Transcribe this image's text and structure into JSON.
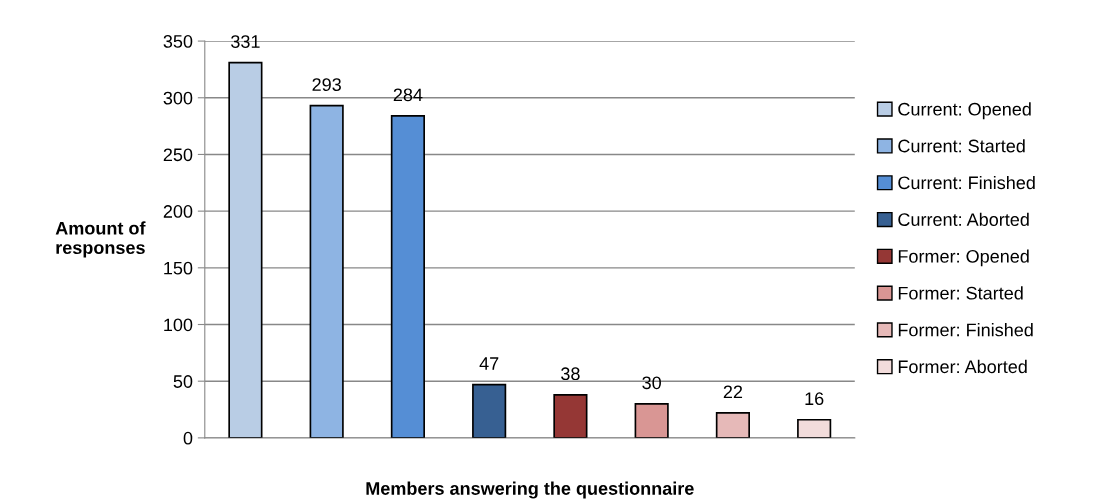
{
  "chart_data": {
    "type": "bar",
    "xlabel": "Members answering the questionnaire",
    "ylabel": "Amount of\nresponses",
    "categories": [
      null,
      null,
      null,
      null,
      null,
      null,
      null,
      null
    ],
    "series": [
      {
        "name": "Current: Opened",
        "color": "#b9cde5",
        "values": [
          331,
          null,
          null,
          null,
          null,
          null,
          null,
          null
        ]
      },
      {
        "name": "Current: Started",
        "color": "#8eb4e3",
        "values": [
          null,
          293,
          null,
          null,
          null,
          null,
          null,
          null
        ]
      },
      {
        "name": "Current: Finished",
        "color": "#558ed5",
        "values": [
          null,
          null,
          284,
          null,
          null,
          null,
          null,
          null
        ]
      },
      {
        "name": "Current: Aborted",
        "color": "#376092",
        "values": [
          null,
          null,
          null,
          47,
          null,
          null,
          null,
          null
        ]
      },
      {
        "name": "Former: Opened",
        "color": "#953735",
        "values": [
          null,
          null,
          null,
          null,
          38,
          null,
          null,
          null
        ]
      },
      {
        "name": "Former: Started",
        "color": "#d99694",
        "values": [
          null,
          null,
          null,
          null,
          null,
          30,
          null,
          null
        ]
      },
      {
        "name": "Former: Finished",
        "color": "#e6b9b8",
        "values": [
          null,
          null,
          null,
          null,
          null,
          null,
          22,
          null
        ]
      },
      {
        "name": "Former: Aborted",
        "color": "#f2dcdb",
        "values": [
          null,
          null,
          null,
          null,
          null,
          null,
          null,
          16
        ]
      }
    ],
    "ylim": [
      0,
      350
    ],
    "yticks": [
      0,
      50,
      100,
      150,
      200,
      250,
      300,
      350
    ],
    "grid": "y",
    "legend": "right",
    "data_labels": true
  }
}
